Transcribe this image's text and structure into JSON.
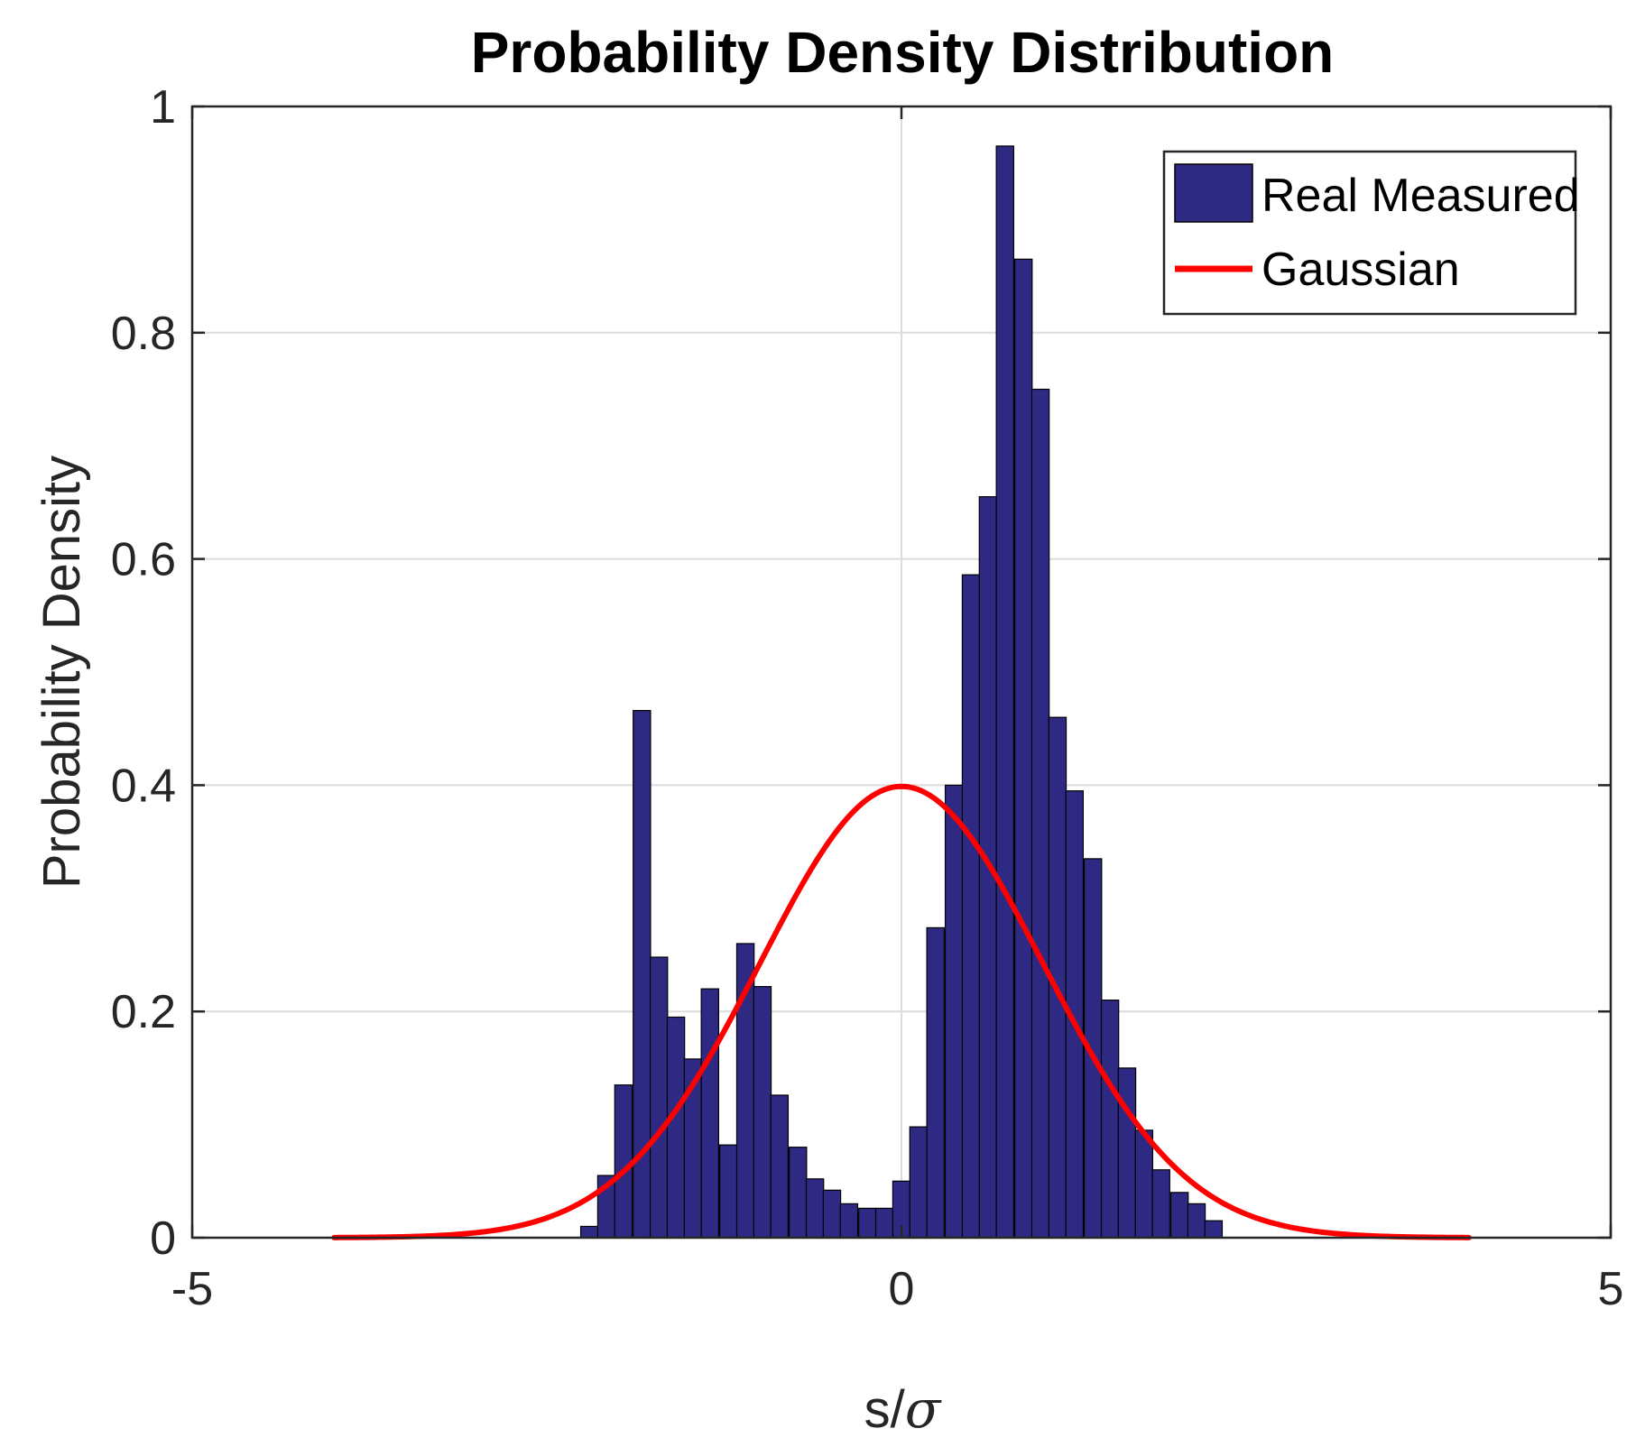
{
  "chart_data": {
    "type": "bar",
    "title": "Probability Density Distribution",
    "xlabel_main": "s/",
    "xlabel_greek": "σ",
    "ylabel": "Probability Density",
    "xlim": [
      -5,
      5
    ],
    "ylim": [
      0,
      1
    ],
    "xticks": [
      -5,
      0,
      5
    ],
    "xtick_labels": [
      "-5",
      "0",
      "5"
    ],
    "yticks": [
      0,
      0.2,
      0.4,
      0.6,
      0.8,
      1
    ],
    "ytick_labels": [
      "0",
      "0.2",
      "0.4",
      "0.6",
      "0.8",
      "1"
    ],
    "grid": true,
    "legend_position": "top-right",
    "bin_width": 0.1224,
    "series": [
      {
        "name": "Real Measured",
        "type": "histogram",
        "color": "#2e2a84",
        "bin_centers": [
          -2.2,
          -2.08,
          -1.96,
          -1.83,
          -1.71,
          -1.59,
          -1.47,
          -1.35,
          -1.22,
          -1.1,
          -0.98,
          -0.86,
          -0.73,
          -0.61,
          -0.49,
          -0.37,
          -0.24,
          -0.12,
          0.0,
          0.12,
          0.24,
          0.37,
          0.49,
          0.61,
          0.73,
          0.86,
          0.98,
          1.1,
          1.22,
          1.35,
          1.47,
          1.59,
          1.71,
          1.83,
          1.96,
          2.08,
          2.2
        ],
        "values": [
          0.01,
          0.055,
          0.135,
          0.466,
          0.248,
          0.195,
          0.158,
          0.22,
          0.082,
          0.26,
          0.222,
          0.126,
          0.08,
          0.052,
          0.042,
          0.03,
          0.026,
          0.026,
          0.05,
          0.098,
          0.274,
          0.4,
          0.586,
          0.655,
          0.965,
          0.865,
          0.75,
          0.46,
          0.395,
          0.335,
          0.21,
          0.15,
          0.095,
          0.06,
          0.04,
          0.03,
          0.015
        ]
      },
      {
        "name": "Gaussian",
        "type": "line",
        "color": "#ff0000",
        "mean": 0,
        "std": 1,
        "x_range": [
          -4,
          4
        ]
      }
    ]
  }
}
